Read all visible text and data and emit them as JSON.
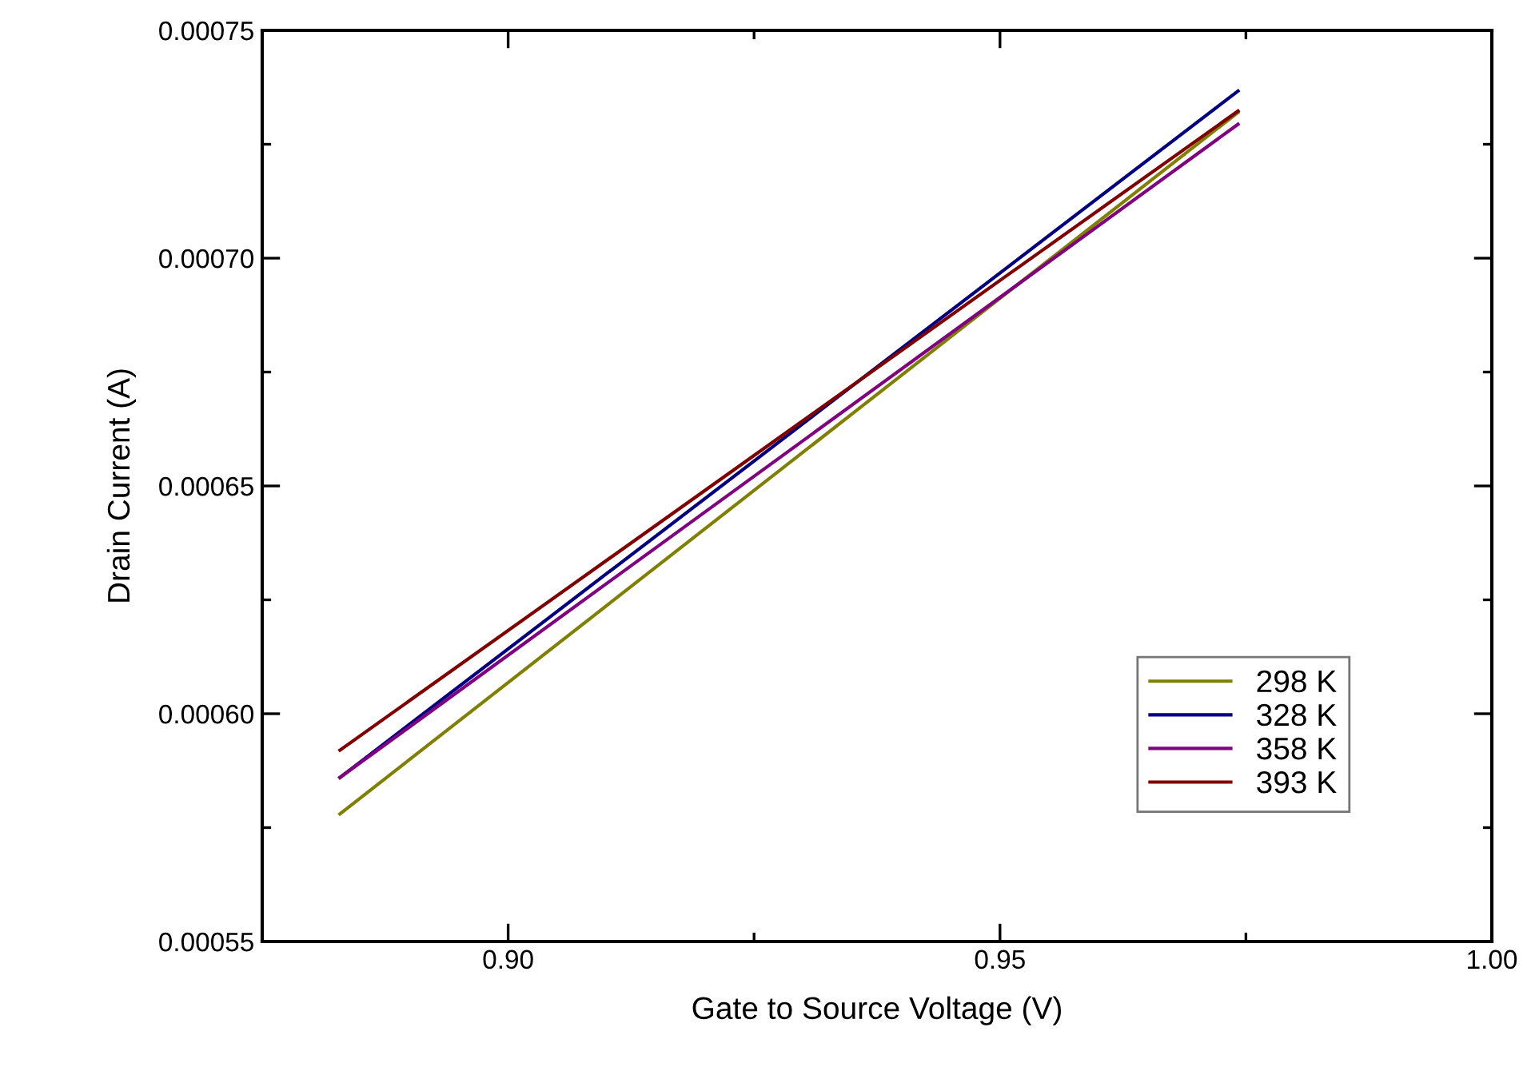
{
  "chart_data": {
    "type": "line",
    "xlabel": "Gate to Source Voltage (V)",
    "ylabel": "Drain Current (A)",
    "xlim": [
      0.875,
      1.0
    ],
    "xticks": [
      {
        "value": 0.9,
        "label": "0.90"
      },
      {
        "value": 0.95,
        "label": "0.95"
      },
      {
        "value": 1.0,
        "label": "1.00"
      }
    ],
    "ylim": [
      0.00055,
      0.00075
    ],
    "yticks": [
      {
        "value": 0.00055,
        "label": "0.00055"
      },
      {
        "value": 0.0006,
        "label": "0.00060"
      },
      {
        "value": 0.00065,
        "label": "0.00065"
      },
      {
        "value": 0.0007,
        "label": "0.00070"
      },
      {
        "value": 0.00075,
        "label": "0.00075"
      }
    ],
    "x": [
      0.8829,
      0.9742
    ],
    "series": [
      {
        "name": "298 K",
        "color": "#808000",
        "values": [
          0.000578,
          0.000732
        ]
      },
      {
        "name": "328 K",
        "color": "#000080",
        "values": [
          0.000586,
          0.0007367
        ]
      },
      {
        "name": "358 K",
        "color": "#800080",
        "values": [
          0.000586,
          0.0007294
        ]
      },
      {
        "name": "393 K",
        "color": "#800000",
        "values": [
          0.000592,
          0.0007323
        ]
      }
    ],
    "legend": "bottom right",
    "grid": false,
    "marker": "none",
    "line_style": "solid"
  }
}
